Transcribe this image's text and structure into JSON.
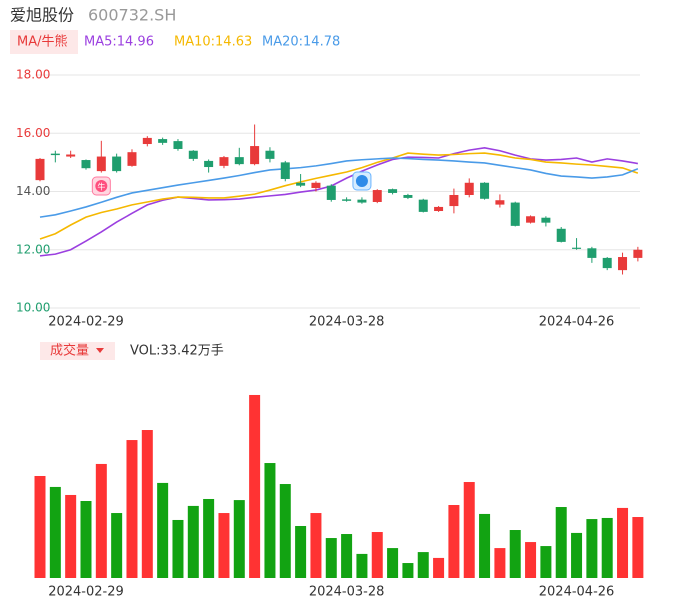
{
  "header": {
    "name": "爱旭股份",
    "code": "600732.SH"
  },
  "chart_data": [
    {
      "type": "candlestick",
      "indicator_tab": "MA/牛熊",
      "annotations": [
        "牛"
      ],
      "categories": [
        null,
        null,
        null,
        "2024-02-29",
        null,
        null,
        null,
        null,
        null,
        null,
        null,
        null,
        null,
        null,
        null,
        null,
        null,
        null,
        null,
        null,
        "2024-03-28",
        null,
        null,
        null,
        null,
        null,
        null,
        null,
        null,
        null,
        null,
        null,
        null,
        null,
        null,
        "2024-04-26",
        null,
        null,
        null,
        null
      ],
      "open": [
        14.39,
        15.3,
        15.2,
        15.08,
        14.7,
        15.2,
        14.88,
        15.63,
        15.8,
        15.73,
        15.4,
        15.05,
        14.88,
        15.18,
        14.94,
        15.4,
        15.0,
        14.3,
        14.12,
        14.2,
        13.73,
        13.72,
        13.64,
        14.08,
        13.88,
        13.72,
        13.33,
        13.5,
        13.88,
        14.3,
        13.55,
        13.62,
        12.93,
        13.1,
        12.72,
        12.07,
        12.05,
        11.72,
        11.3,
        11.72
      ],
      "high": [
        15.15,
        15.4,
        15.4,
        15.1,
        15.74,
        15.3,
        15.45,
        15.9,
        15.85,
        15.8,
        15.42,
        15.1,
        15.22,
        15.5,
        16.3,
        15.52,
        15.05,
        14.6,
        14.35,
        14.25,
        13.8,
        13.8,
        14.08,
        14.1,
        13.92,
        13.75,
        13.5,
        14.1,
        14.45,
        14.32,
        13.9,
        13.65,
        13.18,
        13.15,
        12.78,
        12.4,
        12.1,
        11.75,
        11.9,
        12.1
      ],
      "low": [
        14.35,
        15.0,
        15.15,
        14.75,
        14.65,
        14.65,
        14.85,
        15.55,
        15.6,
        15.4,
        15.05,
        14.65,
        14.8,
        14.9,
        14.9,
        15.0,
        14.35,
        14.15,
        14.0,
        13.65,
        13.65,
        13.58,
        13.6,
        13.9,
        13.74,
        13.28,
        13.3,
        13.25,
        13.8,
        13.72,
        13.45,
        12.8,
        12.9,
        12.8,
        12.25,
        12.0,
        11.55,
        11.3,
        11.15,
        11.6
      ],
      "close": [
        15.12,
        15.25,
        15.27,
        14.8,
        15.2,
        14.7,
        15.35,
        15.84,
        15.67,
        15.46,
        15.12,
        14.84,
        15.18,
        14.94,
        15.56,
        15.12,
        14.43,
        14.2,
        14.3,
        13.71,
        13.68,
        13.62,
        14.05,
        13.95,
        13.78,
        13.3,
        13.47,
        13.88,
        14.3,
        13.75,
        13.7,
        12.82,
        13.15,
        12.93,
        12.27,
        12.03,
        11.72,
        11.37,
        11.75,
        12.0
      ],
      "up_color": "#e83a3a",
      "down_color": "#1f9e6e",
      "series": [
        {
          "name": "MA5:14.96",
          "color": "#9b3fe0",
          "values": [
            11.79,
            11.85,
            12.0,
            12.3,
            12.61,
            12.95,
            13.25,
            13.54,
            13.7,
            13.81,
            13.76,
            13.71,
            13.72,
            13.74,
            13.8,
            13.85,
            13.9,
            13.98,
            14.05,
            14.19,
            14.46,
            14.7,
            14.91,
            15.1,
            15.18,
            15.17,
            15.15,
            15.3,
            15.42,
            15.5,
            15.4,
            15.25,
            15.12,
            15.08,
            15.1,
            15.15,
            15.01,
            15.12,
            15.05,
            14.96
          ]
        },
        {
          "name": "MA10:14.63",
          "color": "#f5b800",
          "values": [
            12.37,
            12.55,
            12.85,
            13.12,
            13.28,
            13.4,
            13.54,
            13.64,
            13.74,
            13.81,
            13.8,
            13.78,
            13.78,
            13.84,
            13.91,
            14.05,
            14.2,
            14.33,
            14.45,
            14.56,
            14.67,
            14.82,
            15.0,
            15.15,
            15.32,
            15.28,
            15.25,
            15.27,
            15.3,
            15.32,
            15.25,
            15.15,
            15.1,
            15.01,
            14.98,
            14.94,
            14.91,
            14.86,
            14.81,
            14.63
          ]
        },
        {
          "name": "MA20:14.78",
          "color": "#4a9be8",
          "values": [
            13.12,
            13.2,
            13.33,
            13.47,
            13.63,
            13.8,
            13.95,
            14.04,
            14.13,
            14.22,
            14.3,
            14.38,
            14.46,
            14.55,
            14.65,
            14.74,
            14.78,
            14.82,
            14.88,
            14.96,
            15.05,
            15.09,
            15.12,
            15.15,
            15.13,
            15.1,
            15.08,
            15.05,
            15.01,
            14.98,
            14.9,
            14.82,
            14.74,
            14.62,
            14.53,
            14.5,
            14.46,
            14.5,
            14.57,
            14.78
          ]
        }
      ],
      "ylim": [
        10,
        18
      ],
      "yticks": [
        {
          "value": 10,
          "label": "10.00"
        },
        {
          "value": 12,
          "label": "12.00"
        },
        {
          "value": 14,
          "label": "14.00"
        },
        {
          "value": 16,
          "label": "16.00"
        },
        {
          "value": 18,
          "label": "18.00"
        }
      ],
      "ytick_colors": [
        "#1f9e6e",
        "#1f9e6e",
        "#555555",
        "#e83a3a",
        "#e83a3a"
      ],
      "grid": true
    },
    {
      "type": "bar",
      "indicator_tab": "成交量",
      "title": "VOL:33.42万手",
      "categories": [
        null,
        null,
        null,
        "2024-02-29",
        null,
        null,
        null,
        null,
        null,
        null,
        null,
        null,
        null,
        null,
        null,
        null,
        null,
        null,
        null,
        null,
        "2024-03-28",
        null,
        null,
        null,
        null,
        null,
        null,
        null,
        null,
        null,
        null,
        null,
        null,
        null,
        null,
        "2024-04-26",
        null,
        null,
        null,
        null
      ],
      "values": [
        55.9,
        49.9,
        45.5,
        42.2,
        62.5,
        35.6,
        75.6,
        81.1,
        52.1,
        31.8,
        39.5,
        43.3,
        35.6,
        42.7,
        100.3,
        63,
        51.5,
        28.5,
        35.6,
        21.9,
        24.1,
        13.2,
        25.2,
        16.4,
        8.2,
        14.2,
        11,
        40,
        52.6,
        35.1,
        16.4,
        26.3,
        19.7,
        17.5,
        38.9,
        24.7,
        32.3,
        32.9,
        38.4,
        33.42
      ],
      "up_color": "#ff3333",
      "down_color": "#12a312",
      "ylim": [
        0,
        105
      ]
    }
  ]
}
